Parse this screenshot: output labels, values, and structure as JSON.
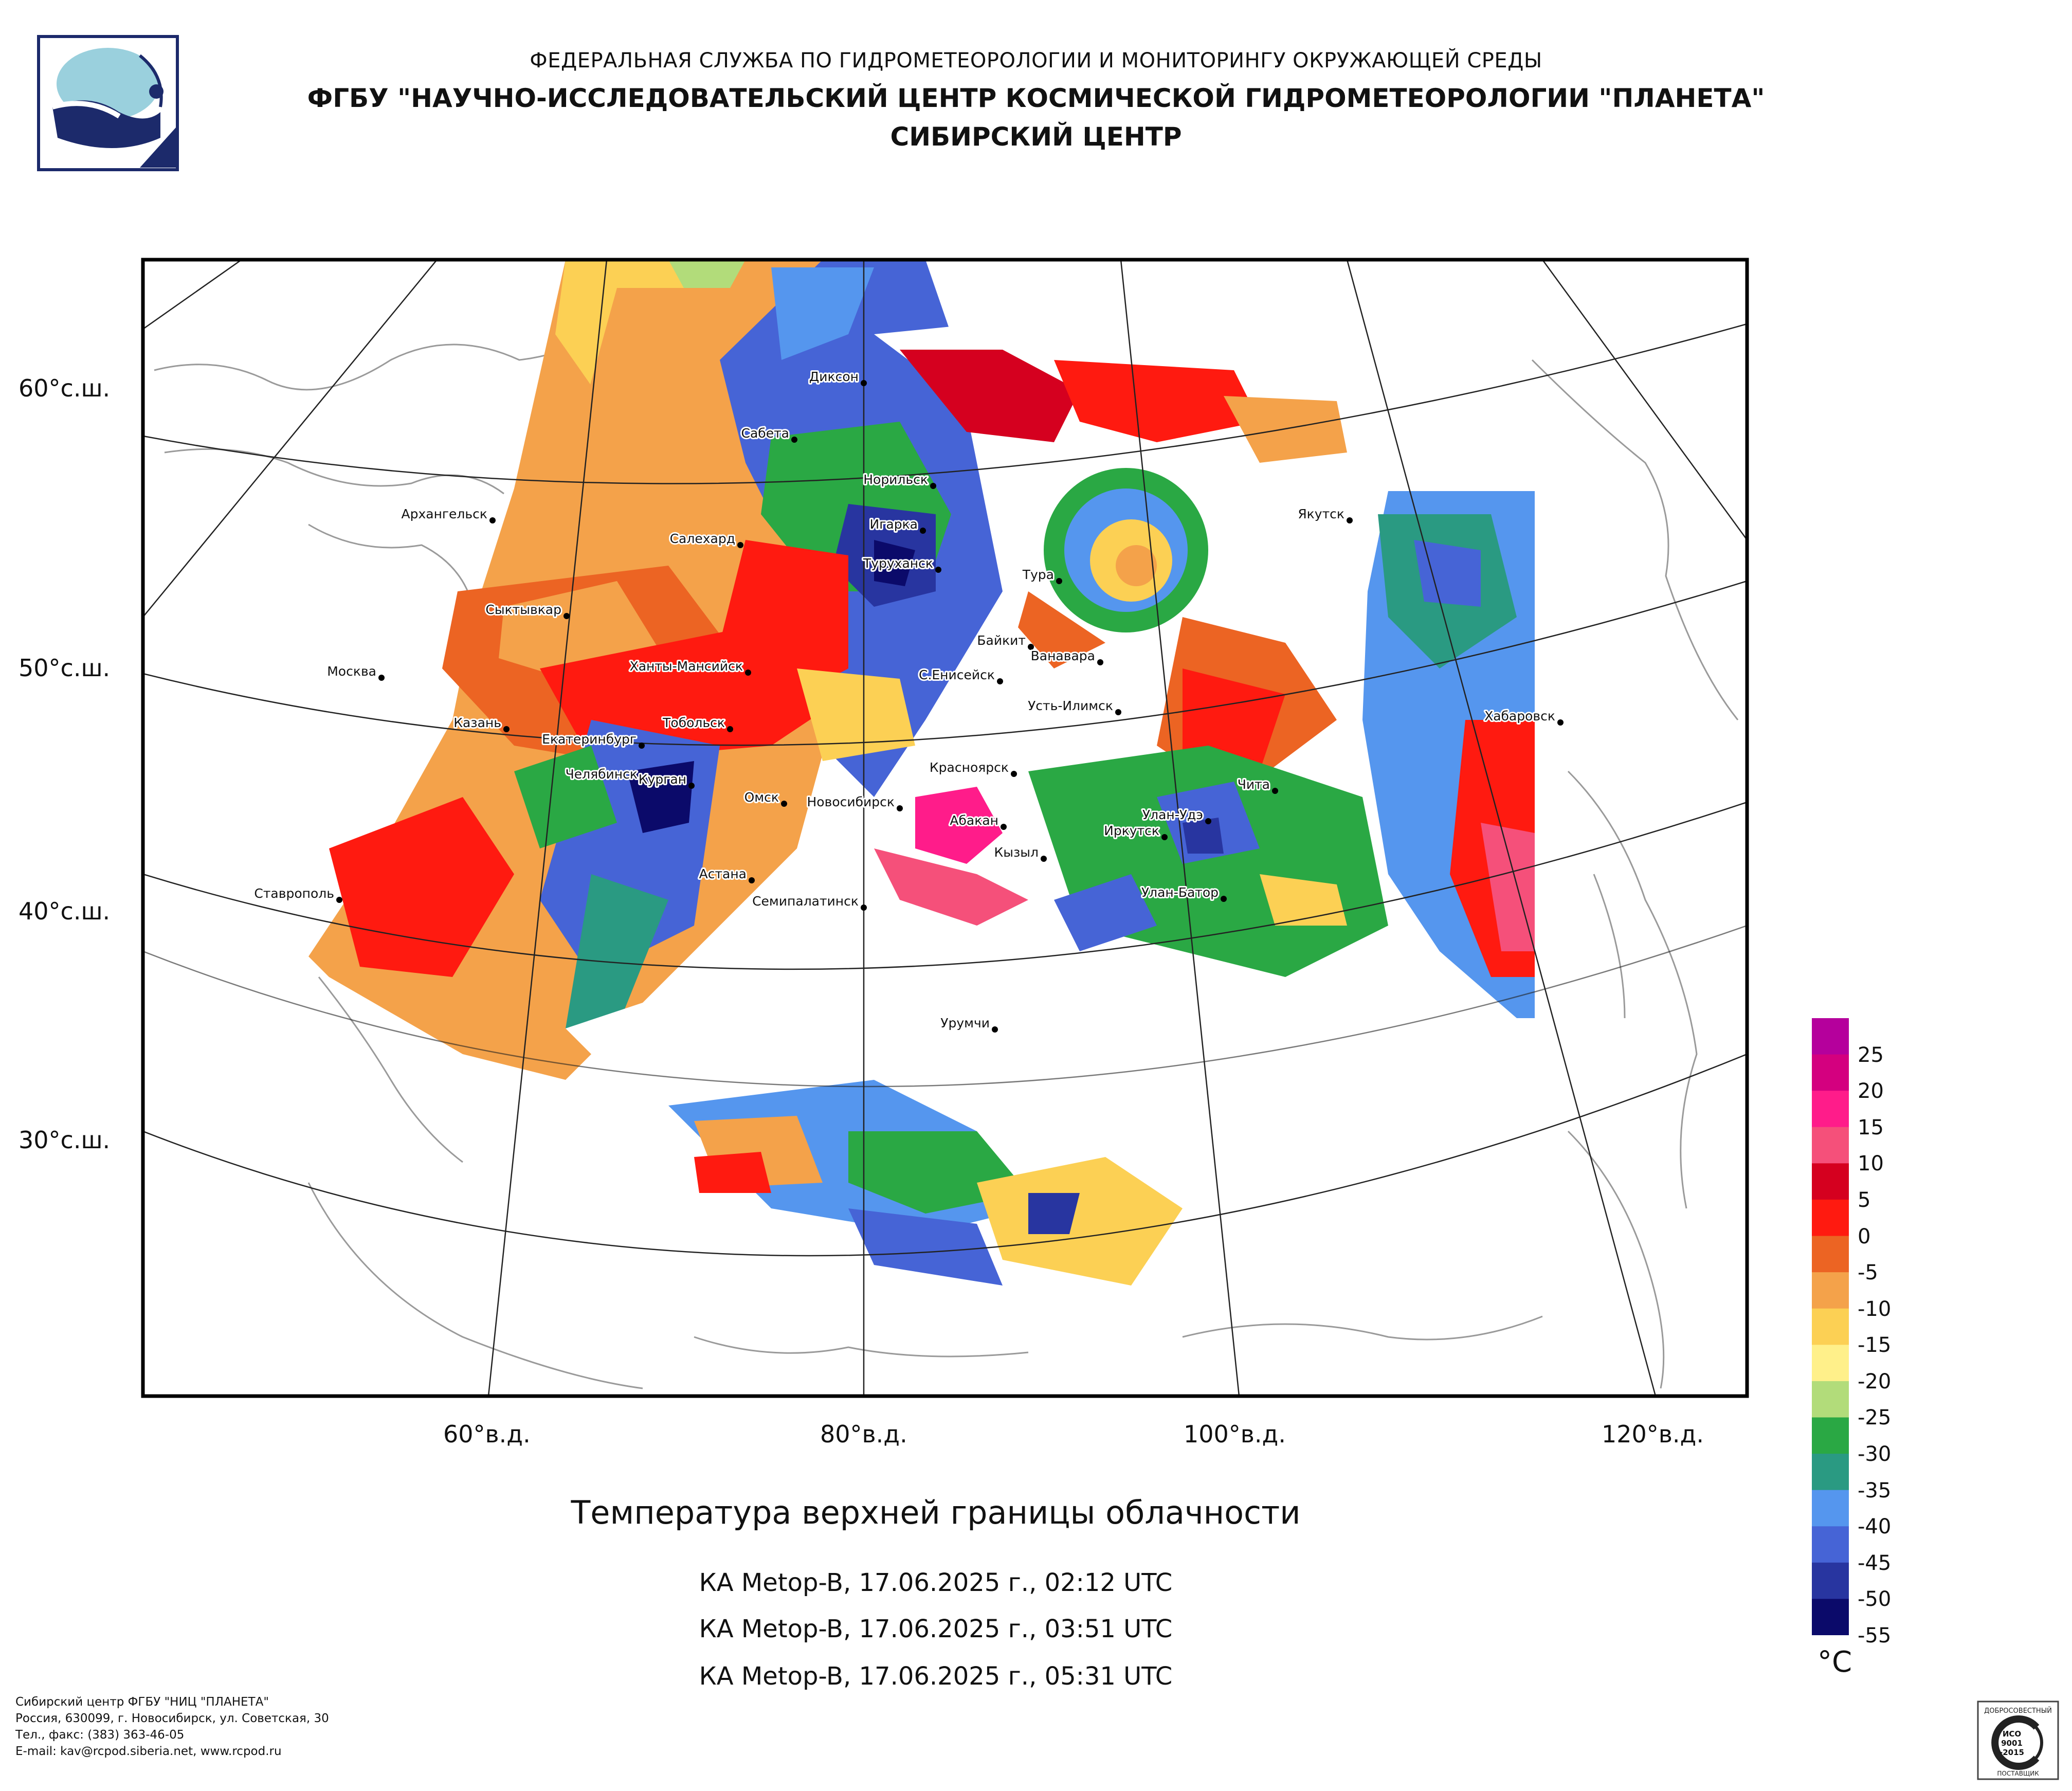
{
  "header": {
    "line1": "ФЕДЕРАЛЬНАЯ СЛУЖБА ПО ГИДРОМЕТЕОРОЛОГИИ И МОНИТОРИНГУ ОКРУЖАЮЩЕЙ СРЕДЫ",
    "line2": "ФГБУ \"НАУЧНО-ИССЛЕДОВАТЕЛЬСКИЙ ЦЕНТР КОСМИЧЕСКОЙ ГИДРОМЕТЕОРОЛОГИИ \"ПЛАНЕТА\"",
    "line3": "СИБИРСКИЙ ЦЕНТР"
  },
  "map": {
    "lat_labels": [
      "60°с.ш.",
      "50°с.ш.",
      "40°с.ш.",
      "30°с.ш."
    ],
    "lon_labels": [
      "60°в.д.",
      "80°в.д.",
      "100°в.д.",
      "120°в.д."
    ],
    "cities": [
      {
        "name": "Диксон"
      },
      {
        "name": "Сабета"
      },
      {
        "name": "Норильск"
      },
      {
        "name": "Игарка"
      },
      {
        "name": "Туруханск"
      },
      {
        "name": "Салехард"
      },
      {
        "name": "Архангельск"
      },
      {
        "name": "Сыктывкар"
      },
      {
        "name": "Москва"
      },
      {
        "name": "Ханты-Мансийск"
      },
      {
        "name": "Казань"
      },
      {
        "name": "Екатеринбург"
      },
      {
        "name": "Тобольск"
      },
      {
        "name": "Челябинск"
      },
      {
        "name": "Курган"
      },
      {
        "name": "Омск"
      },
      {
        "name": "Новосибирск"
      },
      {
        "name": "Абакан"
      },
      {
        "name": "Кызыл"
      },
      {
        "name": "Красноярск"
      },
      {
        "name": "Тура"
      },
      {
        "name": "Байкит"
      },
      {
        "name": "Ванавара"
      },
      {
        "name": "С.Енисейск"
      },
      {
        "name": "Усть-Илимск"
      },
      {
        "name": "Якутск"
      },
      {
        "name": "Хабаровск"
      },
      {
        "name": "Чита"
      },
      {
        "name": "Улан-Удэ"
      },
      {
        "name": "Иркутск"
      },
      {
        "name": "Улан-Батор"
      },
      {
        "name": "Астана"
      },
      {
        "name": "Семипалатинск"
      },
      {
        "name": "Урумчи"
      },
      {
        "name": "Ставрополь"
      }
    ]
  },
  "title": "Температура верхней границы облачности",
  "passes": [
    "КА Metop-B, 17.06.2025 г., 02:12 UTC",
    "КА Metop-B, 17.06.2025 г., 03:51 UTC",
    "КА Metop-B, 17.06.2025 г., 05:31 UTC"
  ],
  "colorbar": {
    "unit": "°C",
    "colors": [
      "#b5009c",
      "#d4007f",
      "#ff1c8a",
      "#f5507a",
      "#d5001f",
      "#ff1a10",
      "#ec6423",
      "#f4a24a",
      "#fcd054",
      "#fff08a",
      "#b2dc7a",
      "#2aa844",
      "#2a9a82",
      "#5596ee",
      "#4664d6",
      "#2835a0",
      "#0b0a6a"
    ],
    "ticks": [
      "25",
      "20",
      "15",
      "10",
      "5",
      "0",
      "-5",
      "-10",
      "-15",
      "-20",
      "-25",
      "-30",
      "-35",
      "-40",
      "-45",
      "-50",
      "-55"
    ]
  },
  "footer": {
    "lines": [
      "Сибирский центр ФГБУ \"НИЦ \"ПЛАНЕТА\"",
      "Россия, 630099, г. Новосибирск, ул. Советская, 30",
      "Тел., факс: (383) 363-46-05",
      "E-mail: kav@rcpod.siberia.net, www.rcpod.ru"
    ]
  },
  "iso_badge": {
    "arc_text": "ДОБРОСОВЕСТНЫЙ",
    "bottom_text": "ПОСТАВЩИК",
    "lines": [
      "ИСО",
      "9001",
      "-2015"
    ]
  }
}
